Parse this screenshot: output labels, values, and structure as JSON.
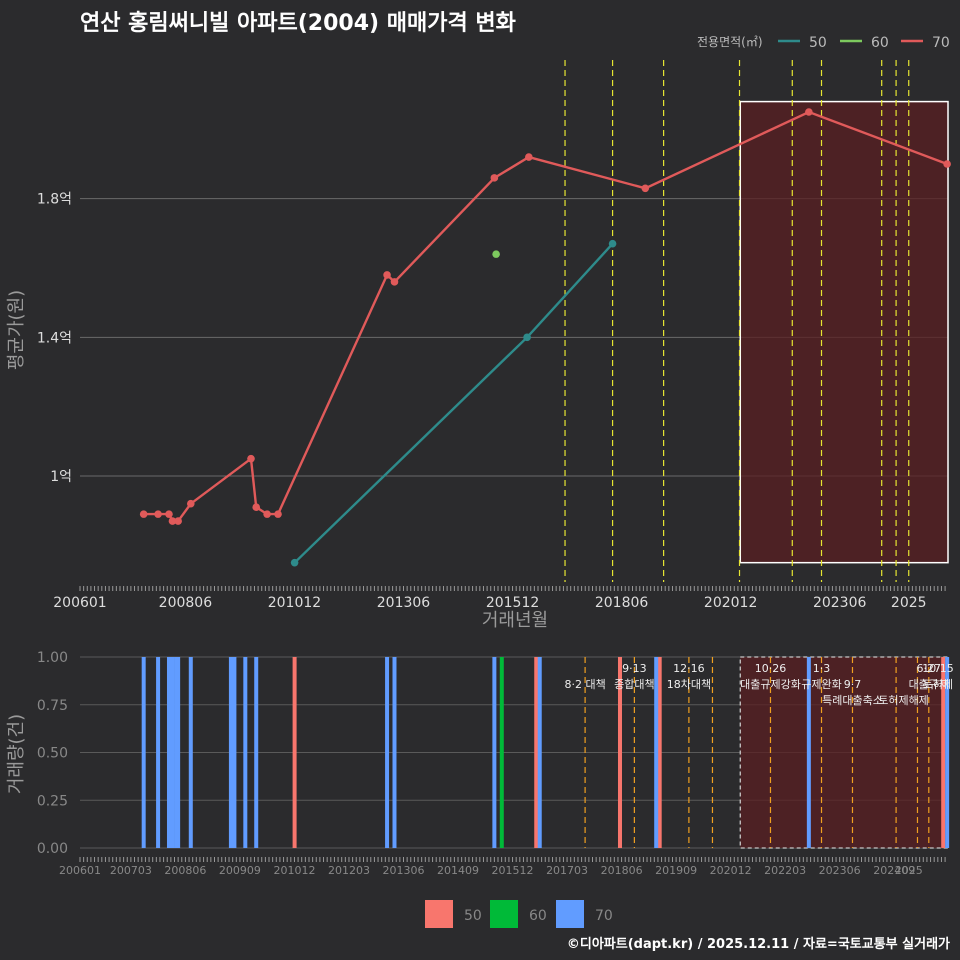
{
  "title": "연산 홍림써니빌 아파트(2004) 매매가격 변화",
  "footer": "©디아파트(dapt.kr) / 2025.12.11 / 자료=국토교통부 실거래가",
  "colors": {
    "background": "#2b2b2d",
    "series_50": "#2e8b8b",
    "series_60": "#7dc95e",
    "series_70": "#e05a5a",
    "bar_50": "#f8766d",
    "bar_60": "#00ba38",
    "bar_70": "#619cff",
    "policy_line": "#e6e632",
    "policy_line_bottom": "#f0a020",
    "highlight": "#5a1f22"
  },
  "chart_data": [
    {
      "type": "line",
      "title": "연산 홍림써니빌 아파트(2004) 매매가격 변화",
      "xlabel": "거래년월",
      "ylabel": "평균가(원)",
      "x_ticks": [
        "200601",
        "200806",
        "201012",
        "201306",
        "201512",
        "201806",
        "202012",
        "202306",
        "2025"
      ],
      "y_ticks": [
        "1억",
        "1.4억",
        "1.8억"
      ],
      "y_tick_values": [
        1.0,
        1.4,
        1.8
      ],
      "ylim": [
        0.7,
        2.2
      ],
      "xlim": [
        2006.0,
        2025.9
      ],
      "legend_title": "전용면적(㎡)",
      "legend_position": "top-right",
      "series": [
        {
          "name": "50",
          "x": [
            2010.92,
            2016.25,
            2018.21
          ],
          "y": [
            0.75,
            1.4,
            1.67
          ]
        },
        {
          "name": "60",
          "x": [
            2015.54
          ],
          "y": [
            1.64
          ]
        },
        {
          "name": "70",
          "x": [
            2007.46,
            2007.79,
            2008.04,
            2008.12,
            2008.25,
            2008.54,
            2009.92,
            2010.04,
            2010.29,
            2010.54,
            2013.04,
            2013.21,
            2015.5,
            2016.29,
            2018.96,
            2022.71,
            2025.88
          ],
          "y": [
            0.89,
            0.89,
            0.89,
            0.87,
            0.87,
            0.92,
            1.05,
            0.91,
            0.89,
            0.89,
            1.58,
            1.56,
            1.86,
            1.92,
            1.83,
            2.05,
            1.9
          ]
        }
      ],
      "policy_lines_x": [
        2017.12,
        2018.21,
        2019.38,
        2021.12,
        2022.33,
        2023.0,
        2024.38,
        2024.71,
        2025.0
      ],
      "highlight_range_x": [
        2021.0,
        2025.9
      ],
      "highlight_range_y": [
        0.75,
        2.08
      ]
    },
    {
      "type": "bar",
      "xlabel": "",
      "ylabel": "거래량(건)",
      "x_ticks": [
        "200601",
        "200703",
        "200806",
        "200909",
        "201012",
        "201203",
        "201306",
        "201409",
        "201512",
        "201703",
        "201806",
        "201909",
        "202012",
        "202203",
        "202306",
        "202409",
        "2025"
      ],
      "y_ticks": [
        "0.00",
        "0.25",
        "0.50",
        "0.75",
        "1.00"
      ],
      "ylim": [
        0,
        1
      ],
      "legend": [
        "50",
        "60",
        "70"
      ],
      "legend_position": "bottom",
      "series": [
        {
          "name": "50",
          "x": [
            2010.92,
            2016.46,
            2018.38,
            2019.29,
            2025.79
          ],
          "values": [
            1,
            1,
            1,
            1,
            1
          ]
        },
        {
          "name": "60",
          "x": [
            2015.67
          ],
          "values": [
            1
          ]
        },
        {
          "name": "70",
          "x": [
            2007.46,
            2007.79,
            2008.04,
            2008.12,
            2008.21,
            2008.25,
            2008.54,
            2009.46,
            2009.54,
            2009.79,
            2010.04,
            2013.04,
            2013.21,
            2015.5,
            2016.54,
            2019.21,
            2022.71,
            2025.88
          ],
          "values": [
            1,
            1,
            1,
            1,
            1,
            1,
            1,
            1,
            1,
            1,
            1,
            1,
            1,
            1,
            1,
            1,
            1,
            1
          ]
        }
      ],
      "policy_labels": [
        {
          "date": "8·2 대책",
          "x": 2017.58,
          "row": 1
        },
        {
          "date": "9·13",
          "x": 2018.71,
          "row": 0
        },
        {
          "date": "종합대책",
          "x": 2018.71,
          "row": 1
        },
        {
          "date": "12·16",
          "x": 2019.96,
          "row": 0
        },
        {
          "date": "18차대책",
          "x": 2019.96,
          "row": 1
        },
        {
          "date": "10·26",
          "x": 2021.83,
          "row": 0
        },
        {
          "date": "대출규제강화",
          "x": 2021.83,
          "row": 1
        },
        {
          "date": "1·3",
          "x": 2023.0,
          "row": 0
        },
        {
          "date": "규제완화",
          "x": 2023.0,
          "row": 1
        },
        {
          "date": "9·7",
          "x": 2023.71,
          "row": 1
        },
        {
          "date": "특례대출축소",
          "x": 2023.71,
          "row": 2
        },
        {
          "date": "토허제해제",
          "x": 2024.88,
          "row": 2
        },
        {
          "date": "6·27",
          "x": 2025.46,
          "row": 0
        },
        {
          "date": "대출규제",
          "x": 2025.46,
          "row": 1
        },
        {
          "date": "10·15",
          "x": 2025.79,
          "row": 0
        },
        {
          "date": "토허제",
          "x": 2025.79,
          "row": 1
        }
      ],
      "policy_lines_x": [
        2017.58,
        2018.71,
        2019.96,
        2020.5,
        2021.83,
        2023.0,
        2023.71,
        2024.71,
        2025.2,
        2025.46
      ],
      "highlight_range_x": [
        2021.0,
        2025.9
      ]
    }
  ]
}
